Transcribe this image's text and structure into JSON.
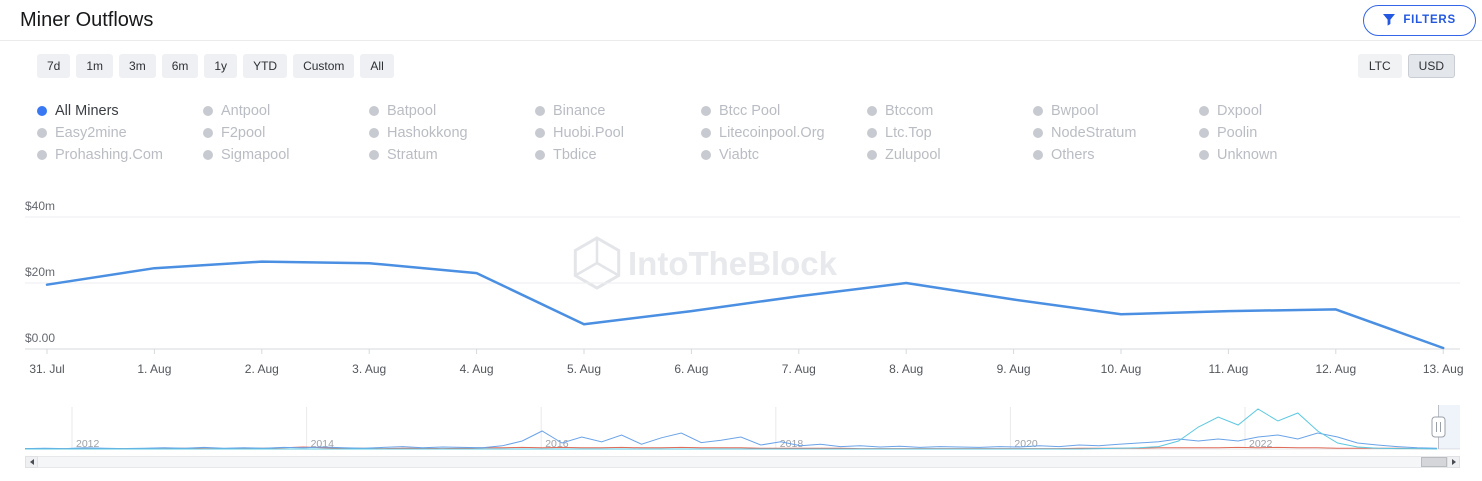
{
  "header": {
    "title": "Miner Outflows",
    "filters_button": "FILTERS"
  },
  "icons": {
    "filters": "funnel-icon",
    "scroll_left": "left-arrow-icon",
    "scroll_right": "right-arrow-icon"
  },
  "colors": {
    "accent_blue": "#2458e0",
    "series_line": "#4a8fe2",
    "legend_active_dot": "#3878f2",
    "nav_blue": "#6aa3e8",
    "nav_cyan": "#5cc8e0",
    "nav_red": "#e06c5a"
  },
  "toolbar": {
    "range_buttons": [
      "7d",
      "1m",
      "3m",
      "6m",
      "1y",
      "YTD",
      "Custom",
      "All"
    ],
    "currency_buttons": [
      "LTC",
      "USD"
    ],
    "active_currency": "USD"
  },
  "legend": {
    "active": "All Miners",
    "items": [
      "All Miners",
      "Antpool",
      "Batpool",
      "Binance",
      "Btcc Pool",
      "Btccom",
      "Bwpool",
      "Dxpool",
      "Easy2mine",
      "F2pool",
      "Hashokkong",
      "Huobi.Pool",
      "Litecoinpool.Org",
      "Ltc.Top",
      "NodeStratum",
      "Poolin",
      "Prohashing.Com",
      "Sigmapool",
      "Stratum",
      "Tbdice",
      "Viabtc",
      "Zulupool",
      "Others",
      "Unknown"
    ]
  },
  "watermark": "IntoTheBlock",
  "chart_data": {
    "type": "line",
    "title": "Miner Outflows",
    "series_name": "All Miners",
    "unit": "USD (millions)",
    "x_labels": [
      "31. Jul",
      "1. Aug",
      "2. Aug",
      "3. Aug",
      "4. Aug",
      "5. Aug",
      "6. Aug",
      "7. Aug",
      "8. Aug",
      "9. Aug",
      "10. Aug",
      "11. Aug",
      "12. Aug",
      "13. Aug"
    ],
    "values_million_usd": [
      19.5,
      24.5,
      26.5,
      26,
      23,
      7.5,
      11.5,
      16,
      20,
      15,
      10.5,
      11.5,
      12,
      0.3
    ],
    "ytick_labels": [
      "$0.00",
      "$20m",
      "$40m"
    ],
    "ytick_values": [
      0,
      20,
      40
    ],
    "ylim": [
      0,
      40
    ],
    "grid": true,
    "legend_position": "top",
    "line_color": "#4a8fe2"
  },
  "navigator": {
    "year_labels": [
      "2012",
      "2014",
      "2016",
      "2018",
      "2020",
      "2022"
    ],
    "series": [
      {
        "name": "red",
        "color": "#e06c5a",
        "values": [
          1,
          1,
          1,
          1,
          1,
          1,
          1,
          1,
          2,
          1,
          1,
          2,
          2,
          3,
          5,
          3,
          2,
          2,
          1,
          2,
          2,
          1,
          2,
          3,
          3,
          4,
          3,
          4,
          3,
          3,
          4,
          3,
          3,
          4,
          3,
          3,
          3,
          2,
          2,
          2,
          2,
          2,
          1,
          1,
          1,
          1,
          1,
          1,
          1,
          1,
          1,
          1,
          1,
          2,
          2,
          2,
          2,
          3,
          3,
          3,
          3,
          4,
          3,
          4,
          3,
          3,
          2,
          2,
          2,
          2,
          1,
          1
        ]
      },
      {
        "name": "blue",
        "color": "#6aa3e8",
        "values": [
          1,
          2,
          1,
          3,
          2,
          1,
          2,
          3,
          2,
          4,
          2,
          3,
          2,
          4,
          3,
          5,
          3,
          2,
          4,
          6,
          3,
          5,
          4,
          3,
          8,
          20,
          45,
          15,
          30,
          18,
          35,
          12,
          28,
          40,
          16,
          22,
          30,
          10,
          18,
          8,
          12,
          6,
          8,
          5,
          7,
          4,
          6,
          5,
          4,
          6,
          5,
          8,
          6,
          10,
          8,
          12,
          15,
          18,
          25,
          20,
          25,
          20,
          30,
          35,
          25,
          40,
          30,
          15,
          10,
          6,
          3,
          2
        ]
      },
      {
        "name": "cyan",
        "color": "#5cc8e0",
        "values": [
          0,
          0,
          0,
          0,
          0,
          0,
          0,
          0,
          0,
          0,
          0,
          0,
          0,
          0,
          0,
          0,
          0,
          0,
          0,
          0,
          0,
          0,
          0,
          0,
          0,
          0,
          0,
          0,
          0,
          0,
          0,
          0,
          0,
          0,
          0,
          0,
          0,
          0,
          0,
          0,
          0,
          0,
          0,
          0,
          0,
          0,
          0,
          0,
          0,
          0,
          0,
          0,
          0,
          0,
          1,
          2,
          3,
          6,
          20,
          55,
          80,
          60,
          100,
          70,
          90,
          45,
          15,
          5,
          2,
          1,
          1,
          0
        ]
      }
    ]
  }
}
